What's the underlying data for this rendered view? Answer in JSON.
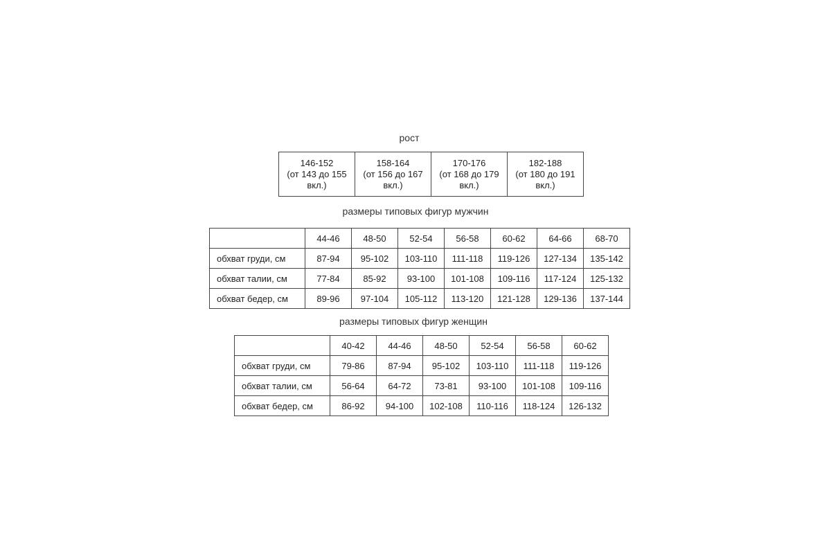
{
  "height": {
    "title": "рост",
    "cells": [
      {
        "range": "146-152",
        "note": "(от 143 до 155 вкл.)"
      },
      {
        "range": "158-164",
        "note": "(от 156 до 167 вкл.)"
      },
      {
        "range": "170-176",
        "note": "(от 168 до 179 вкл.)"
      },
      {
        "range": "182-188",
        "note": "(от 180 до 191 вкл.)"
      }
    ]
  },
  "men": {
    "title": "размеры типовых фигур мужчин",
    "sizes": [
      "44-46",
      "48-50",
      "52-54",
      "56-58",
      "60-62",
      "64-66",
      "68-70"
    ],
    "rows": [
      {
        "label": "обхват груди, см",
        "values": [
          "87-94",
          "95-102",
          "103-110",
          "111-118",
          "119-126",
          "127-134",
          "135-142"
        ]
      },
      {
        "label": "обхват талии, см",
        "values": [
          "77-84",
          "85-92",
          "93-100",
          "101-108",
          "109-116",
          "117-124",
          "125-132"
        ]
      },
      {
        "label": "обхват бедер, см",
        "values": [
          "89-96",
          "97-104",
          "105-112",
          "113-120",
          "121-128",
          "129-136",
          "137-144"
        ]
      }
    ]
  },
  "women": {
    "title": "размеры типовых фигур женщин",
    "sizes": [
      "40-42",
      "44-46",
      "48-50",
      "52-54",
      "56-58",
      "60-62"
    ],
    "rows": [
      {
        "label": "обхват груди, см",
        "values": [
          "79-86",
          "87-94",
          "95-102",
          "103-110",
          "111-118",
          "119-126"
        ]
      },
      {
        "label": "обхват талии, см",
        "values": [
          "56-64",
          "64-72",
          "73-81",
          "93-100",
          "101-108",
          "109-116"
        ]
      },
      {
        "label": "обхват бедер, см",
        "values": [
          "86-92",
          "94-100",
          "102-108",
          "110-116",
          "118-124",
          "126-132"
        ]
      }
    ]
  }
}
